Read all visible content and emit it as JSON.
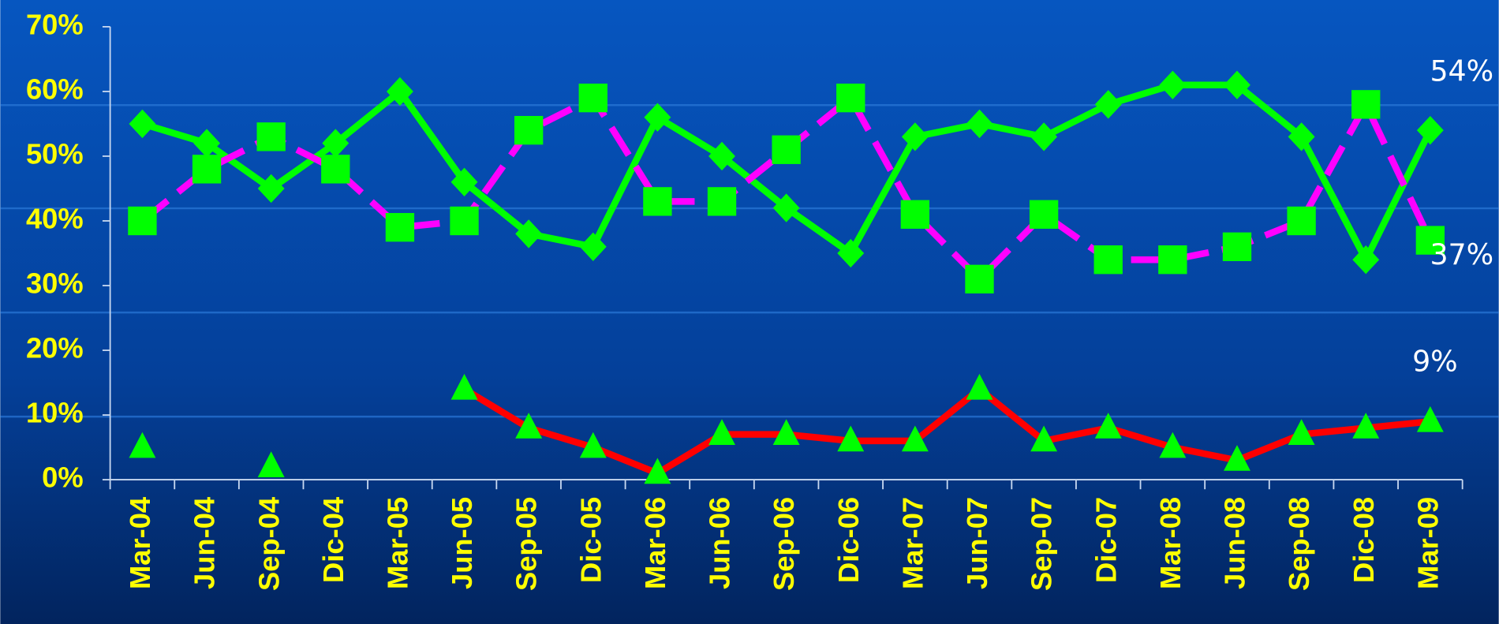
{
  "chart_data": {
    "type": "line",
    "categories": [
      "Mar-04",
      "Jun-04",
      "Sep-04",
      "Dic-04",
      "Mar-05",
      "Jun-05",
      "Sep-05",
      "Dic-05",
      "Mar-06",
      "Jun-06",
      "Sep-06",
      "Dic-06",
      "Mar-07",
      "Jun-07",
      "Sep-07",
      "Dic-07",
      "Mar-08",
      "Jun-08",
      "Sep-08",
      "Dic-08",
      "Mar-09"
    ],
    "series": [
      {
        "color": "#00ff00",
        "marker": "diamond",
        "marker_color": "#00ff00",
        "dash": false,
        "values": [
          55,
          52,
          45,
          52,
          60,
          46,
          38,
          36,
          56,
          50,
          42,
          35,
          53,
          55,
          53,
          58,
          61,
          61,
          53,
          34,
          54
        ],
        "value_labels": [
          null,
          null,
          null,
          null,
          null,
          null,
          null,
          null,
          null,
          null,
          null,
          null,
          null,
          null,
          null,
          null,
          null,
          null,
          null,
          null,
          "54%"
        ]
      },
      {
        "color": "#ff00ff",
        "marker": "square",
        "marker_color": "#00ff00",
        "dash": true,
        "values": [
          40,
          48,
          53,
          48,
          39,
          40,
          54,
          59,
          43,
          43,
          51,
          59,
          41,
          31,
          41,
          34,
          34,
          36,
          40,
          58,
          37
        ],
        "value_labels": [
          null,
          null,
          null,
          null,
          null,
          null,
          null,
          null,
          null,
          null,
          null,
          null,
          null,
          null,
          null,
          null,
          null,
          null,
          null,
          null,
          "37%"
        ]
      },
      {
        "color": "#ff0000",
        "marker": "triangle",
        "marker_color": "#00ff00",
        "dash": false,
        "values": [
          5,
          null,
          2,
          null,
          null,
          14,
          8,
          5,
          1,
          7,
          7,
          6,
          6,
          14,
          6,
          8,
          5,
          3,
          7,
          8,
          9
        ],
        "value_labels": [
          null,
          null,
          null,
          null,
          null,
          null,
          null,
          null,
          null,
          null,
          null,
          null,
          null,
          null,
          null,
          null,
          null,
          null,
          null,
          null,
          "9%"
        ]
      }
    ],
    "ylim": [
      0,
      70
    ],
    "yticks": [
      {
        "value": 0,
        "label": "0%"
      },
      {
        "value": 10,
        "label": "10%"
      },
      {
        "value": 20,
        "label": "20%"
      },
      {
        "value": 30,
        "label": "30%"
      },
      {
        "value": 40,
        "label": "40%"
      },
      {
        "value": 50,
        "label": "50%"
      },
      {
        "value": 60,
        "label": "60%"
      },
      {
        "value": 70,
        "label": "70%"
      }
    ],
    "grid": false
  }
}
